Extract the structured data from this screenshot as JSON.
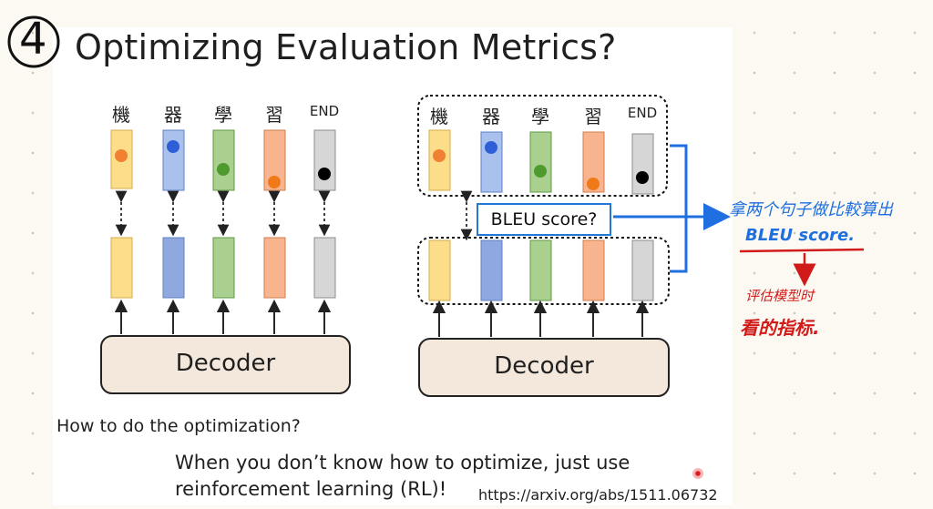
{
  "slide": {
    "number_mark": "4",
    "title": "Optimizing Evaluation Metrics?",
    "left_tokens": [
      "機",
      "器",
      "學",
      "習",
      "END"
    ],
    "right_tokens": [
      "機",
      "器",
      "學",
      "習",
      "END"
    ],
    "decoder_label_left": "Decoder",
    "decoder_label_right": "Decoder",
    "bleu_label": "BLEU score?",
    "question": "How to do the optimization?",
    "answer_line1": "When you don’t know how to optimize, just use",
    "answer_line2": "reinforcement learning (RL)!",
    "url": "https://arxiv.org/abs/1511.06732"
  },
  "annotations": {
    "blue_note_line1": "拿两个句子做比較算出",
    "blue_note_line2": "BLEU score.",
    "red_note_line1": "评估模型时",
    "red_note_line2": "看的指标."
  },
  "colors": {
    "yellow": "#fbdd8a",
    "blue": "#a9c1ec",
    "green": "#a9d08e",
    "orange": "#f8b48e",
    "gray": "#d6d6d6",
    "decoder_fill": "#f4e8dc",
    "note_blue": "#1f6fe0",
    "note_red": "#d11b1b"
  }
}
